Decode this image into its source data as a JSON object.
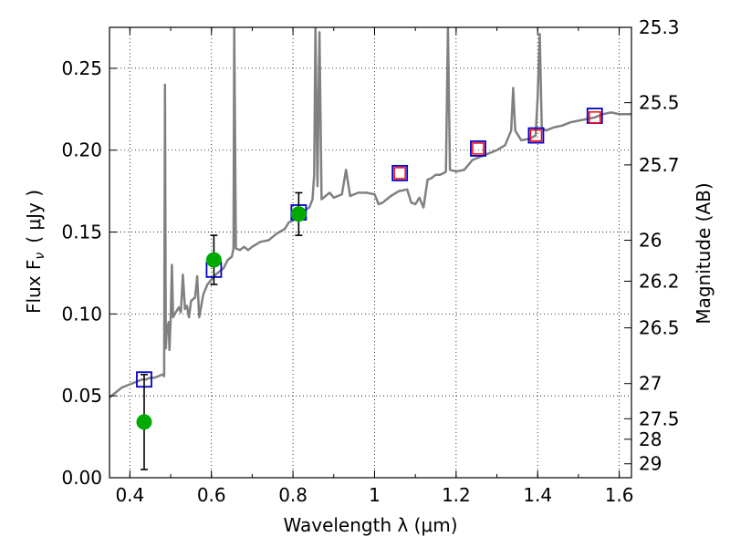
{
  "chart_data": {
    "type": "scatter",
    "xlabel": "Wavelength  λ (μm)",
    "ylabel_left": "Flux  F",
    "ylabel_left_sub": "ν",
    "ylabel_left_units": "( μJy )",
    "ylabel_right": "Magnitude (AB)",
    "xlim": [
      0.35,
      1.63
    ],
    "ylim": [
      0.0,
      0.275
    ],
    "grid": true,
    "x_ticks": [
      {
        "value": 0.4,
        "label": "0.4"
      },
      {
        "value": 0.6,
        "label": "0.6"
      },
      {
        "value": 0.8,
        "label": "0.8"
      },
      {
        "value": 1.0,
        "label": "1"
      },
      {
        "value": 1.2,
        "label": "1.2"
      },
      {
        "value": 1.4,
        "label": "1.4"
      },
      {
        "value": 1.6,
        "label": "1.6"
      }
    ],
    "y_ticks": [
      {
        "value": 0.0,
        "label": "0.00"
      },
      {
        "value": 0.05,
        "label": "0.05"
      },
      {
        "value": 0.1,
        "label": "0.10"
      },
      {
        "value": 0.15,
        "label": "0.15"
      },
      {
        "value": 0.2,
        "label": "0.20"
      },
      {
        "value": 0.25,
        "label": "0.25"
      }
    ],
    "right_ticks": [
      {
        "flux": 0.275,
        "label": "25.3"
      },
      {
        "flux": 0.229,
        "label": "25.5"
      },
      {
        "flux": 0.191,
        "label": "25.7"
      },
      {
        "flux": 0.145,
        "label": "26"
      },
      {
        "flux": 0.12,
        "label": "26.2"
      },
      {
        "flux": 0.0915,
        "label": "26.5"
      },
      {
        "flux": 0.0575,
        "label": "27"
      },
      {
        "flux": 0.036,
        "label": "27.5"
      },
      {
        "flux": 0.0235,
        "label": "28"
      },
      {
        "flux": 0.0085,
        "label": "29"
      }
    ],
    "spectrum": {
      "name": "model spectrum",
      "color": "#808080",
      "points": [
        [
          0.35,
          0.049
        ],
        [
          0.36,
          0.051
        ],
        [
          0.37,
          0.053
        ],
        [
          0.38,
          0.055
        ],
        [
          0.39,
          0.056
        ],
        [
          0.4,
          0.057
        ],
        [
          0.41,
          0.058
        ],
        [
          0.42,
          0.059
        ],
        [
          0.43,
          0.06
        ],
        [
          0.44,
          0.06
        ],
        [
          0.45,
          0.061
        ],
        [
          0.46,
          0.061
        ],
        [
          0.47,
          0.062
        ],
        [
          0.48,
          0.063
        ],
        [
          0.484,
          0.062
        ],
        [
          0.486,
          0.24
        ],
        [
          0.488,
          0.079
        ],
        [
          0.49,
          0.088
        ],
        [
          0.495,
          0.095
        ],
        [
          0.497,
          0.078
        ],
        [
          0.5,
          0.096
        ],
        [
          0.503,
          0.13
        ],
        [
          0.506,
          0.098
        ],
        [
          0.51,
          0.1
        ],
        [
          0.515,
          0.102
        ],
        [
          0.52,
          0.104
        ],
        [
          0.525,
          0.101
        ],
        [
          0.53,
          0.124
        ],
        [
          0.535,
          0.103
        ],
        [
          0.54,
          0.105
        ],
        [
          0.545,
          0.098
        ],
        [
          0.55,
          0.108
        ],
        [
          0.56,
          0.11
        ],
        [
          0.565,
          0.123
        ],
        [
          0.57,
          0.098
        ],
        [
          0.58,
          0.112
        ],
        [
          0.59,
          0.118
        ],
        [
          0.6,
          0.121
        ],
        [
          0.61,
          0.124
        ],
        [
          0.62,
          0.126
        ],
        [
          0.63,
          0.128
        ],
        [
          0.64,
          0.133
        ],
        [
          0.65,
          0.135
        ],
        [
          0.654,
          0.14
        ],
        [
          0.656,
          0.275
        ],
        [
          0.66,
          0.14
        ],
        [
          0.67,
          0.139
        ],
        [
          0.68,
          0.141
        ],
        [
          0.69,
          0.139
        ],
        [
          0.7,
          0.141
        ],
        [
          0.72,
          0.144
        ],
        [
          0.74,
          0.145
        ],
        [
          0.76,
          0.149
        ],
        [
          0.78,
          0.152
        ],
        [
          0.79,
          0.156
        ],
        [
          0.8,
          0.157
        ],
        [
          0.82,
          0.162
        ],
        [
          0.84,
          0.165
        ],
        [
          0.848,
          0.17
        ],
        [
          0.852,
          0.185
        ],
        [
          0.855,
          0.275
        ],
        [
          0.86,
          0.178
        ],
        [
          0.865,
          0.272
        ],
        [
          0.87,
          0.17
        ],
        [
          0.88,
          0.172
        ],
        [
          0.89,
          0.174
        ],
        [
          0.9,
          0.171
        ],
        [
          0.91,
          0.172
        ],
        [
          0.92,
          0.173
        ],
        [
          0.93,
          0.188
        ],
        [
          0.94,
          0.172
        ],
        [
          0.96,
          0.174
        ],
        [
          0.98,
          0.174
        ],
        [
          1.0,
          0.173
        ],
        [
          1.01,
          0.167
        ],
        [
          1.02,
          0.168
        ],
        [
          1.04,
          0.172
        ],
        [
          1.06,
          0.175
        ],
        [
          1.08,
          0.176
        ],
        [
          1.09,
          0.168
        ],
        [
          1.1,
          0.167
        ],
        [
          1.11,
          0.171
        ],
        [
          1.12,
          0.165
        ],
        [
          1.13,
          0.182
        ],
        [
          1.14,
          0.183
        ],
        [
          1.15,
          0.185
        ],
        [
          1.16,
          0.185
        ],
        [
          1.17,
          0.186
        ],
        [
          1.175,
          0.187
        ],
        [
          1.18,
          0.275
        ],
        [
          1.185,
          0.188
        ],
        [
          1.2,
          0.187
        ],
        [
          1.22,
          0.188
        ],
        [
          1.24,
          0.194
        ],
        [
          1.26,
          0.196
        ],
        [
          1.28,
          0.198
        ],
        [
          1.3,
          0.2
        ],
        [
          1.32,
          0.203
        ],
        [
          1.335,
          0.212
        ],
        [
          1.34,
          0.238
        ],
        [
          1.345,
          0.212
        ],
        [
          1.36,
          0.206
        ],
        [
          1.38,
          0.207
        ],
        [
          1.395,
          0.209
        ],
        [
          1.4,
          0.232
        ],
        [
          1.405,
          0.271
        ],
        [
          1.41,
          0.214
        ],
        [
          1.42,
          0.212
        ],
        [
          1.44,
          0.214
        ],
        [
          1.46,
          0.215
        ],
        [
          1.48,
          0.217
        ],
        [
          1.5,
          0.218
        ],
        [
          1.52,
          0.219
        ],
        [
          1.54,
          0.22
        ],
        [
          1.56,
          0.222
        ],
        [
          1.58,
          0.223
        ],
        [
          1.6,
          0.222
        ],
        [
          1.63,
          0.222
        ]
      ]
    },
    "model_photometry_blue": {
      "name": "model photometry (blue squares)",
      "color": "#0000cc",
      "points": [
        [
          0.435,
          0.06
        ],
        [
          0.606,
          0.127
        ],
        [
          0.814,
          0.162
        ],
        [
          1.062,
          0.186
        ],
        [
          1.254,
          0.201
        ],
        [
          1.396,
          0.209
        ],
        [
          1.54,
          0.221
        ]
      ]
    },
    "observed_photometry_red": {
      "name": "observed photometry (red squares)",
      "color": "#ff0000",
      "points": [
        [
          1.062,
          0.186
        ],
        [
          1.254,
          0.201
        ],
        [
          1.396,
          0.209
        ],
        [
          1.54,
          0.22
        ]
      ]
    },
    "observed_photometry_green": {
      "name": "observed photometry (green points)",
      "color": "#00aa00",
      "points": [
        {
          "x": 0.435,
          "y": 0.034,
          "err": 0.029
        },
        {
          "x": 0.606,
          "y": 0.133,
          "err": 0.015
        },
        {
          "x": 0.814,
          "y": 0.161,
          "err": 0.013
        }
      ]
    }
  }
}
